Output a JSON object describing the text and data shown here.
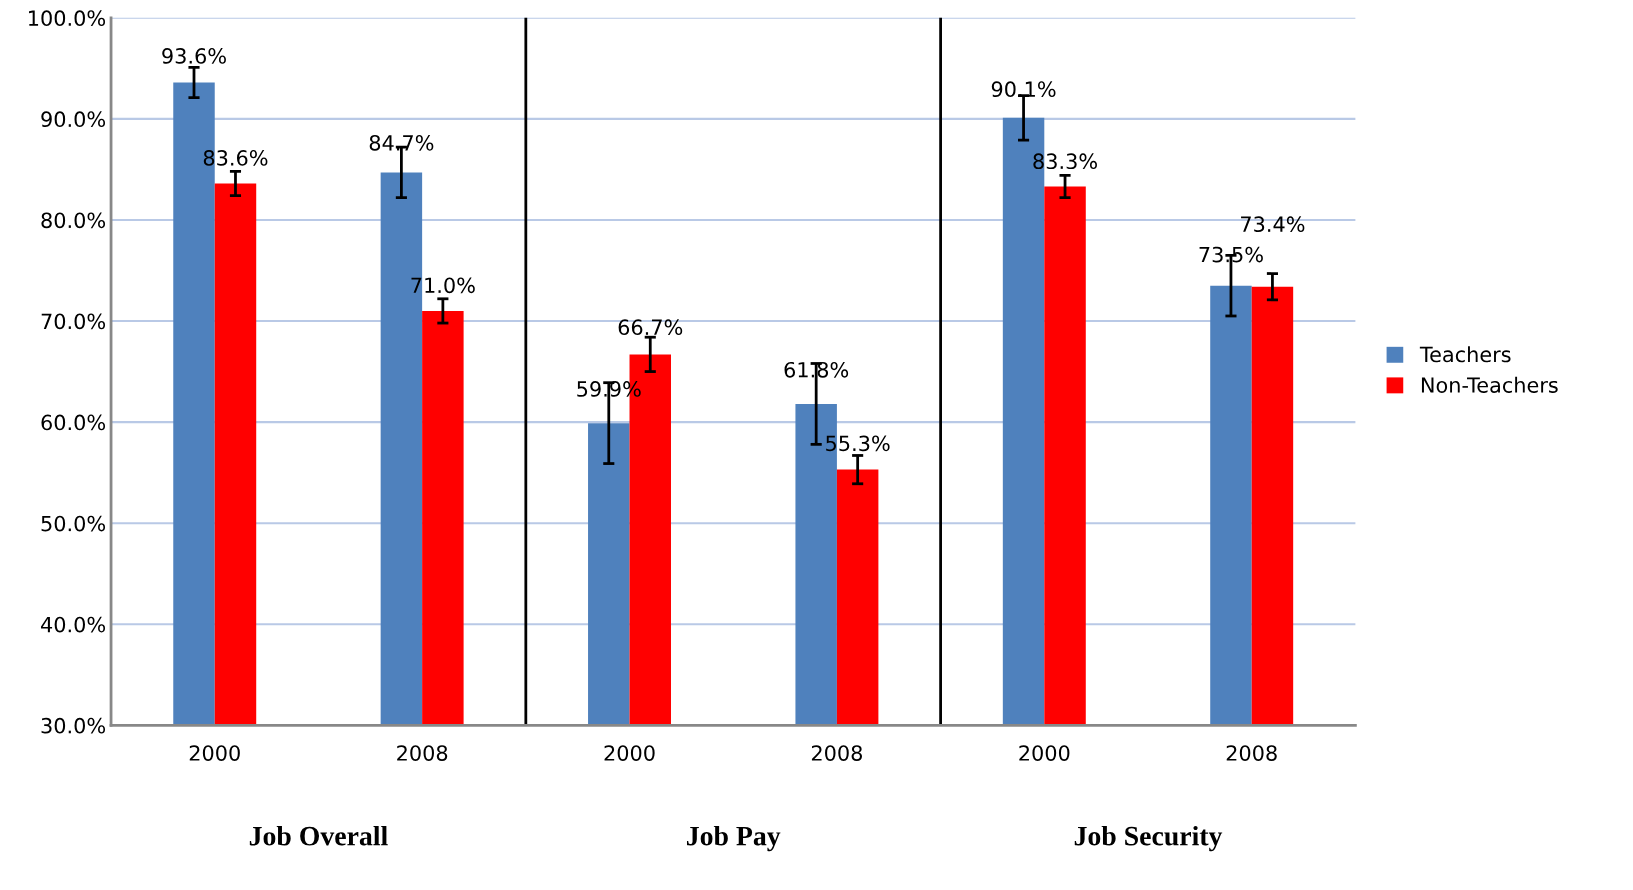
{
  "chart_data": {
    "type": "bar",
    "categories": [
      "2000",
      "2008",
      "2000",
      "2008",
      "2000",
      "2008"
    ],
    "series": [
      {
        "name": "Teachers",
        "color": "#4f81bd",
        "values": [
          93.6,
          84.7,
          59.9,
          61.8,
          90.1,
          73.5
        ],
        "errors": [
          1.5,
          2.5,
          4.0,
          4.0,
          2.2,
          3.0
        ],
        "value_labels": [
          "93.6%",
          "84.7%",
          "59.9%",
          "61.8%",
          "90.1%",
          "73.5%"
        ]
      },
      {
        "name": "Non-Teachers",
        "color": "#ff0000",
        "values": [
          83.6,
          71.0,
          66.7,
          55.3,
          83.3,
          73.4
        ],
        "errors": [
          1.2,
          1.2,
          1.7,
          1.4,
          1.1,
          1.3
        ],
        "value_labels": [
          "83.6%",
          "71.0%",
          "66.7%",
          "55.3%",
          "83.3%",
          "73.4%"
        ]
      }
    ],
    "ylim": [
      30,
      100
    ],
    "yticks": [
      {
        "value": 30,
        "label": "30.0%"
      },
      {
        "value": 40,
        "label": "40.0%"
      },
      {
        "value": 50,
        "label": "50.0%"
      },
      {
        "value": 60,
        "label": "60.0%"
      },
      {
        "value": 70,
        "label": "70.0%"
      },
      {
        "value": 80,
        "label": "80.0%"
      },
      {
        "value": 90,
        "label": "90.0%"
      },
      {
        "value": 100,
        "label": "100.0%"
      }
    ],
    "annotations": [
      "Job Overall",
      "Job Pay",
      "Job Security"
    ],
    "grid": "y",
    "legend": "right"
  }
}
